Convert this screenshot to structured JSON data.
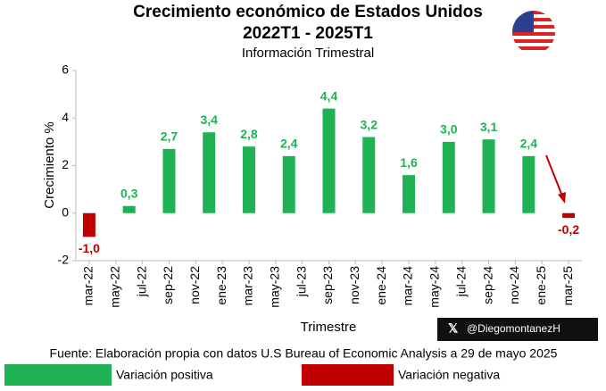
{
  "chart_data": {
    "type": "bar",
    "title": "Crecimiento económico de Estados Unidos",
    "title_line2": "2022T1 - 2025T1",
    "subtitle": "Información Trimestral",
    "ylabel": "Crecimiento %",
    "xlabel": "Trimestre",
    "source": "Fuente: Elaboración propia con datos U.S Bureau of Economic Analysis a 29 de mayo 2025",
    "watermark": "@DiegomontanezH",
    "x": [
      0,
      3,
      6,
      9,
      12,
      15,
      18,
      21,
      24,
      27,
      30,
      33,
      36
    ],
    "values": [
      -1.0,
      0.3,
      2.7,
      3.4,
      2.8,
      2.4,
      4.4,
      3.2,
      1.6,
      3.0,
      3.1,
      2.4,
      -0.2
    ],
    "value_labels": [
      "-1,0",
      "0,3",
      "2,7",
      "3,4",
      "2,8",
      "2,4",
      "4,4",
      "3,2",
      "1,6",
      "3,0",
      "3,1",
      "2,4",
      "-0,2"
    ],
    "xlim": [
      -1,
      37
    ],
    "xticks": [
      {
        "value": 0,
        "label": "mar-22"
      },
      {
        "value": 2,
        "label": "may-22"
      },
      {
        "value": 4,
        "label": "jul-22"
      },
      {
        "value": 6,
        "label": "sep-22"
      },
      {
        "value": 8,
        "label": "nov-22"
      },
      {
        "value": 10,
        "label": "ene-23"
      },
      {
        "value": 12,
        "label": "mar-23"
      },
      {
        "value": 14,
        "label": "may-23"
      },
      {
        "value": 16,
        "label": "jul-23"
      },
      {
        "value": 18,
        "label": "sep-23"
      },
      {
        "value": 20,
        "label": "nov-23"
      },
      {
        "value": 22,
        "label": "ene-24"
      },
      {
        "value": 24,
        "label": "mar-24"
      },
      {
        "value": 26,
        "label": "may-24"
      },
      {
        "value": 28,
        "label": "jul-24"
      },
      {
        "value": 30,
        "label": "sep-24"
      },
      {
        "value": 32,
        "label": "nov-24"
      },
      {
        "value": 34,
        "label": "ene-25"
      },
      {
        "value": 36,
        "label": "mar-25"
      }
    ],
    "ylim": [
      -2,
      6
    ],
    "yticks": [
      -2,
      0,
      2,
      4,
      6
    ],
    "legend": [
      {
        "label": "Variación positiva",
        "color": "#1fb254"
      },
      {
        "label": "Variación negativa",
        "color": "#c00000"
      }
    ]
  }
}
